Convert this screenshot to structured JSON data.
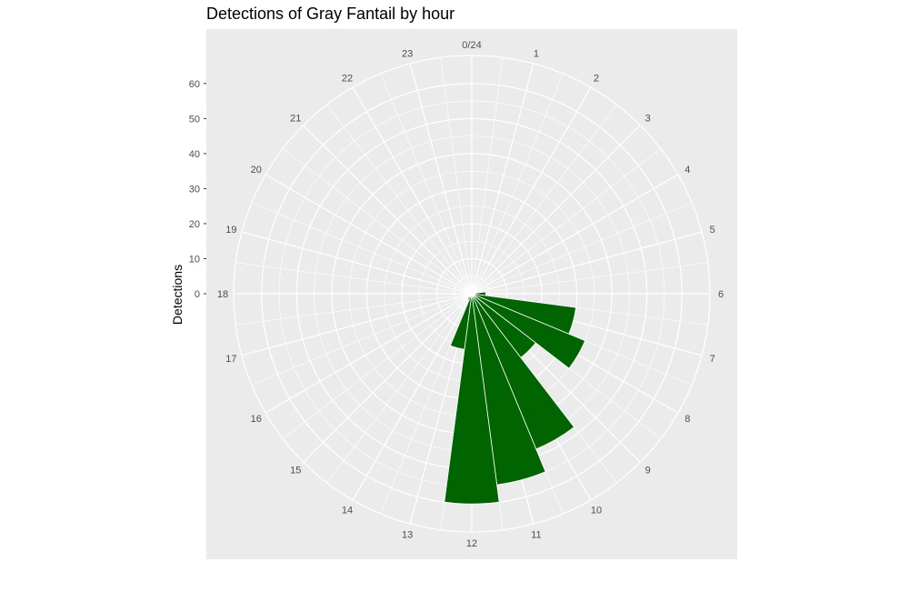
{
  "chart_data": {
    "type": "bar",
    "coord": "polar",
    "title": "Detections of Gray Fantail by hour",
    "xlabel": "",
    "ylabel": "Detections",
    "categories": [
      "0/24",
      "1",
      "2",
      "3",
      "4",
      "5",
      "6",
      "7",
      "8",
      "9",
      "10",
      "11",
      "12",
      "13",
      "14",
      "15",
      "16",
      "17",
      "18",
      "19",
      "20",
      "21",
      "22",
      "23"
    ],
    "values": [
      0,
      0,
      0,
      0,
      0,
      0,
      4,
      30,
      35,
      23,
      48,
      55,
      60,
      16,
      2,
      0,
      0,
      0,
      0,
      0,
      0,
      0,
      0,
      0
    ],
    "yticks": [
      0,
      10,
      20,
      30,
      40,
      50,
      60
    ],
    "ytick_labels": [
      "0",
      "10",
      "20",
      "30",
      "40",
      "50",
      "60"
    ],
    "ylim": [
      0,
      68
    ],
    "bar_color": "#006400",
    "panel_color": "#ebebeb",
    "grid": true,
    "legend": "none"
  }
}
